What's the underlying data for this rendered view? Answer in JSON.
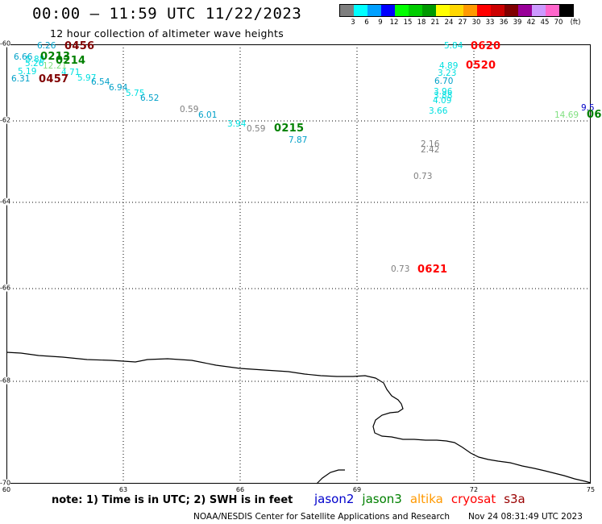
{
  "header": {
    "title": "00:00 – 11:59 UTC 11/22/2023",
    "subtitle": "12 hour collection of altimeter wave heights"
  },
  "legend": {
    "unit_label": "(ft)",
    "bins": [
      {
        "label": "3",
        "color": "#7f7f7f"
      },
      {
        "label": "6",
        "color": "#00ffff"
      },
      {
        "label": "9",
        "color": "#00a0ff"
      },
      {
        "label": "12",
        "color": "#0000ff"
      },
      {
        "label": "15",
        "color": "#00ff00"
      },
      {
        "label": "18",
        "color": "#00cc00"
      },
      {
        "label": "21",
        "color": "#009900"
      },
      {
        "label": "24",
        "color": "#ffff00"
      },
      {
        "label": "27",
        "color": "#ffd700"
      },
      {
        "label": "30",
        "color": "#ff9900"
      },
      {
        "label": "33",
        "color": "#ff0000"
      },
      {
        "label": "36",
        "color": "#cc0000"
      },
      {
        "label": "39",
        "color": "#800000"
      },
      {
        "label": "42",
        "color": "#990099"
      },
      {
        "label": "45",
        "color": "#cc99ff"
      },
      {
        "label": "70",
        "color": "#ff66cc"
      },
      {
        "label": "",
        "color": "#000000"
      }
    ]
  },
  "map": {
    "lat_ticks": [
      "-60",
      "-62",
      "-64",
      "-66",
      "-68",
      "-70"
    ],
    "lon_ticks": [
      "60",
      "63",
      "66",
      "69",
      "72",
      "75"
    ],
    "observations": [
      {
        "text": "6.26",
        "color": "#00a0c8"
      },
      {
        "text": "0456",
        "color": "#800000",
        "kind": "time"
      },
      {
        "text": "6.66",
        "color": "#00a0c8"
      },
      {
        "text": "5.88",
        "color": "#00e0e0"
      },
      {
        "text": "0213",
        "color": "#008000",
        "kind": "time"
      },
      {
        "text": "5.26",
        "color": "#00e0e0"
      },
      {
        "text": "12.21",
        "color": "#80e080"
      },
      {
        "text": "0214",
        "color": "#008000",
        "kind": "time"
      },
      {
        "text": "5.19",
        "color": "#00e0e0"
      },
      {
        "text": "4.71",
        "color": "#00e0e0"
      },
      {
        "text": "6.31",
        "color": "#00a0c8"
      },
      {
        "text": "0457",
        "color": "#800000",
        "kind": "time"
      },
      {
        "text": "5.97",
        "color": "#00e0e0"
      },
      {
        "text": "6.54",
        "color": "#00a0c8"
      },
      {
        "text": "6.94",
        "color": "#00a0c8"
      },
      {
        "text": "5.75",
        "color": "#00e0e0"
      },
      {
        "text": "6.52",
        "color": "#00a0c8"
      },
      {
        "text": "0.59",
        "color": "#7f7f7f"
      },
      {
        "text": "6.01",
        "color": "#00a0c8"
      },
      {
        "text": "3.94",
        "color": "#00e0e0"
      },
      {
        "text": "0.59",
        "color": "#7f7f7f"
      },
      {
        "text": "0215",
        "color": "#008000",
        "kind": "time"
      },
      {
        "text": "7.87",
        "color": "#00a0c8"
      },
      {
        "text": "2.16",
        "color": "#7f7f7f"
      },
      {
        "text": "2.42",
        "color": "#7f7f7f"
      },
      {
        "text": "0.73",
        "color": "#7f7f7f"
      },
      {
        "text": "0.73",
        "color": "#7f7f7f"
      },
      {
        "text": "0621",
        "color": "#ff0000",
        "kind": "time"
      },
      {
        "text": "5.84",
        "color": "#00e0e0"
      },
      {
        "text": "0620",
        "color": "#ff0000",
        "kind": "time"
      },
      {
        "text": "4.89",
        "color": "#00e0e0"
      },
      {
        "text": "0520",
        "color": "#ff0000",
        "kind": "time"
      },
      {
        "text": "3.23",
        "color": "#00e0e0"
      },
      {
        "text": "6.70",
        "color": "#00a0c8"
      },
      {
        "text": "3.96",
        "color": "#00e0e0"
      },
      {
        "text": "3.88",
        "color": "#00e0e0"
      },
      {
        "text": "4.09",
        "color": "#00e0e0"
      },
      {
        "text": "3.66",
        "color": "#00e0e0"
      },
      {
        "text": "9.5",
        "color": "#0000c8"
      },
      {
        "text": "14.69",
        "color": "#80e080"
      },
      {
        "text": "06",
        "color": "#008000",
        "kind": "time"
      }
    ]
  },
  "footer": {
    "note": "note: 1) Time is in UTC; 2) SWH is in feet",
    "satellites": [
      {
        "name": "jason2",
        "color": "#0000cc"
      },
      {
        "name": "jason3",
        "color": "#008000"
      },
      {
        "name": "altika",
        "color": "#ff9900"
      },
      {
        "name": "cryosat",
        "color": "#ff0000"
      },
      {
        "name": "s3a",
        "color": "#990000"
      }
    ],
    "credit": "NOAA/NESDIS Center for Satellite Applications and Research",
    "timestamp": "Nov 24 08:31:49 UTC 2023"
  }
}
